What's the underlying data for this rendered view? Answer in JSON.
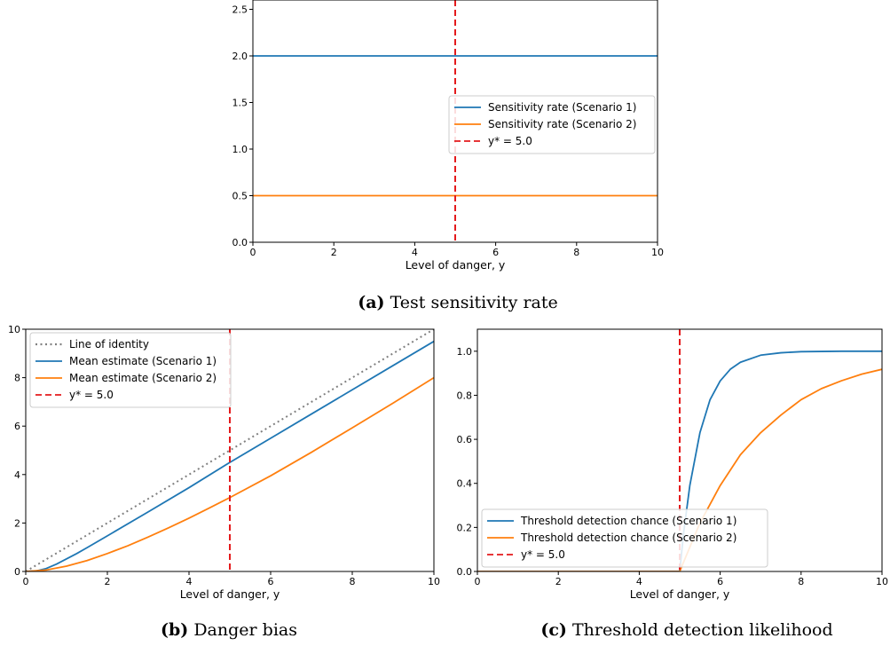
{
  "colors": {
    "scenario1": "#1f77b4",
    "scenario2": "#ff7f0e",
    "threshold": "#e41a1c",
    "identity": "#808080"
  },
  "chart_data": [
    {
      "id": "a",
      "type": "line",
      "xlabel": "Level of danger, y",
      "ylabel": "",
      "xlim": [
        0,
        10
      ],
      "ylim": [
        0,
        2.6
      ],
      "xticks": [
        0,
        2,
        4,
        6,
        8,
        10
      ],
      "yticks": [
        0.0,
        0.5,
        1.0,
        1.5,
        2.0,
        2.5
      ],
      "ytick_decimals": 1,
      "legend_position": "center-right",
      "series": [
        {
          "name": "Sensitivity rate (Scenario 1)",
          "color": "#1f77b4",
          "style": "solid",
          "x": [
            0,
            10
          ],
          "y": [
            2.0,
            2.0
          ]
        },
        {
          "name": "Sensitivity rate (Scenario 2)",
          "color": "#ff7f0e",
          "style": "solid",
          "x": [
            0,
            10
          ],
          "y": [
            0.5,
            0.5
          ]
        }
      ],
      "vline": {
        "name": "y* = 5.0",
        "x": 5.0,
        "color": "#e41a1c",
        "style": "dashed"
      },
      "caption_label": "(a)",
      "caption_text": "Test sensitivity rate"
    },
    {
      "id": "b",
      "type": "line",
      "xlabel": "Level of danger, y",
      "ylabel": "",
      "xlim": [
        0,
        10
      ],
      "ylim": [
        0,
        10
      ],
      "xticks": [
        0,
        2,
        4,
        6,
        8,
        10
      ],
      "yticks": [
        0,
        2,
        4,
        6,
        8,
        10
      ],
      "ytick_decimals": 0,
      "legend_position": "upper-left",
      "series": [
        {
          "name": "Line of identity",
          "color": "#808080",
          "style": "dotted",
          "x": [
            0,
            10
          ],
          "y": [
            0,
            10
          ]
        },
        {
          "name": "Mean estimate (Scenario 1)",
          "color": "#1f77b4",
          "style": "solid",
          "x": [
            0,
            0.25,
            0.5,
            0.75,
            1.0,
            1.25,
            1.5,
            2,
            3,
            4,
            5,
            6,
            7,
            8,
            9,
            10
          ],
          "y": [
            0,
            0.02,
            0.12,
            0.3,
            0.52,
            0.74,
            0.98,
            1.47,
            2.46,
            3.46,
            4.5,
            5.5,
            6.5,
            7.5,
            8.5,
            9.5
          ]
        },
        {
          "name": "Mean estimate (Scenario 2)",
          "color": "#ff7f0e",
          "style": "solid",
          "x": [
            0,
            0.5,
            1,
            1.5,
            2,
            2.5,
            3,
            3.5,
            4,
            4.5,
            5,
            6,
            7,
            8,
            9,
            10
          ],
          "y": [
            0,
            0.06,
            0.22,
            0.45,
            0.74,
            1.06,
            1.42,
            1.8,
            2.2,
            2.62,
            3.05,
            3.95,
            4.92,
            5.93,
            6.95,
            8.0
          ]
        }
      ],
      "vline": {
        "name": "y* = 5.0",
        "x": 5.0,
        "color": "#e41a1c",
        "style": "dashed"
      },
      "caption_label": "(b)",
      "caption_text": "Danger bias"
    },
    {
      "id": "c",
      "type": "line",
      "xlabel": "Level of danger, y",
      "ylabel": "",
      "xlim": [
        0,
        10
      ],
      "ylim": [
        0,
        1.1
      ],
      "xticks": [
        0,
        2,
        4,
        6,
        8,
        10
      ],
      "yticks": [
        0.0,
        0.2,
        0.4,
        0.6,
        0.8,
        1.0
      ],
      "ytick_decimals": 1,
      "legend_position": "lower-left",
      "series": [
        {
          "name": "Threshold detection chance (Scenario 1)",
          "color": "#1f77b4",
          "style": "solid",
          "x": [
            0,
            5.0,
            5.1,
            5.25,
            5.5,
            5.75,
            6.0,
            6.25,
            6.5,
            7.0,
            7.5,
            8.0,
            9.0,
            10.0
          ],
          "y": [
            0,
            0,
            0.18,
            0.39,
            0.63,
            0.78,
            0.865,
            0.918,
            0.95,
            0.982,
            0.993,
            0.998,
            1.0,
            1.0
          ]
        },
        {
          "name": "Threshold detection chance (Scenario 2)",
          "color": "#ff7f0e",
          "style": "solid",
          "x": [
            0,
            5.0,
            5.5,
            6.0,
            6.5,
            7.0,
            7.5,
            8.0,
            8.5,
            9.0,
            9.5,
            10.0
          ],
          "y": [
            0,
            0,
            0.22,
            0.39,
            0.53,
            0.63,
            0.71,
            0.78,
            0.83,
            0.866,
            0.896,
            0.918
          ]
        }
      ],
      "vline": {
        "name": "y* = 5.0",
        "x": 5.0,
        "color": "#e41a1c",
        "style": "dashed"
      },
      "caption_label": "(c)",
      "caption_text": "Threshold detection likelihood"
    }
  ]
}
